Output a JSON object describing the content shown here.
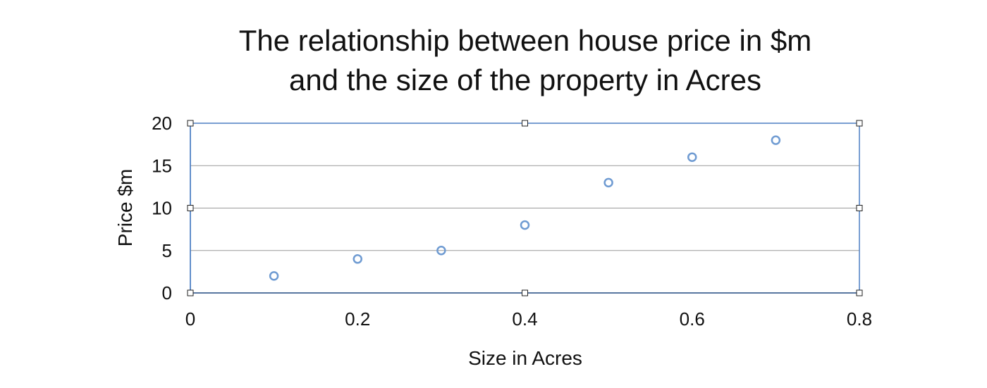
{
  "chart_data": {
    "type": "scatter",
    "title_lines": [
      "The relationship between house price in $m",
      "and the size of the property in Acres"
    ],
    "xlabel": "Size in Acres",
    "ylabel": "Price $m",
    "xlim": [
      0,
      0.8
    ],
    "ylim": [
      0,
      20
    ],
    "x_ticks": [
      0,
      0.2,
      0.4,
      0.6,
      0.8
    ],
    "x_tick_labels": [
      "0",
      "0.2",
      "0.4",
      "0.6",
      "0.8"
    ],
    "y_ticks": [
      0,
      5,
      10,
      15,
      20
    ],
    "y_tick_labels": [
      "0",
      "5",
      "10",
      "15",
      "20"
    ],
    "grid": "horizontal",
    "legend": "none",
    "series": [
      {
        "x": [
          0.1,
          0.2,
          0.3,
          0.4,
          0.5,
          0.6,
          0.7
        ],
        "y": [
          2,
          4,
          5,
          8,
          13,
          16,
          18
        ],
        "color": "#6f9bd2",
        "marker": "hollow-circle"
      }
    ],
    "colors": {
      "frame": "#4d7fc4",
      "grid": "#9a9a9a",
      "axis": "#3f5f8a"
    },
    "selection_handles": true
  }
}
